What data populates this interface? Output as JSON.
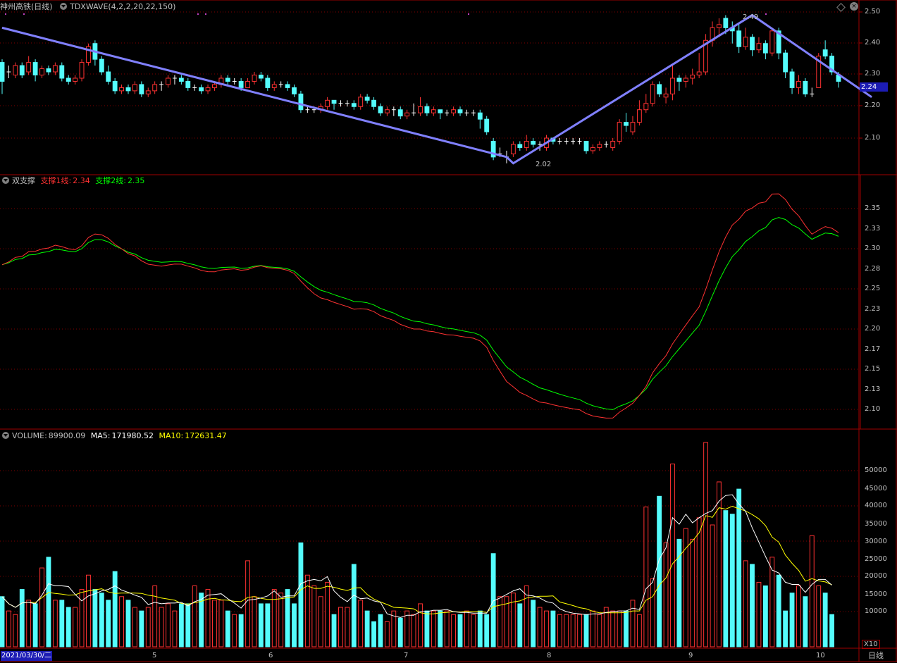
{
  "window": {
    "stock_name": "神州高铁",
    "period": "(日线)",
    "indicator": "TDXWAVE(4,2,2,20,22,150)"
  },
  "price_panel": {
    "current_price": "2.24",
    "high_label": "2.49",
    "low_label": "2.02",
    "y_ticks": [
      "2.50",
      "2.40",
      "2.30",
      "2.20",
      "2.10"
    ],
    "ylim": [
      2.0,
      2.52
    ]
  },
  "support_panel": {
    "title": "双支撑",
    "line1_label": "支撑1线:",
    "line1_value": "2.34",
    "line2_label": "支撑2线:",
    "line2_value": "2.35",
    "y_ticks": [
      "2.35",
      "2.33",
      "2.30",
      "2.28",
      "2.25",
      "2.23",
      "2.20",
      "2.17",
      "2.15",
      "2.13",
      "2.10"
    ]
  },
  "volume_panel": {
    "title": "VOLUME:",
    "volume_value": "89900.09",
    "ma5_label": "MA5:",
    "ma5_value": "171980.52",
    "ma10_label": "MA10:",
    "ma10_value": "172631.47",
    "y_ticks": [
      "50000",
      "45000",
      "40000",
      "35000",
      "30000",
      "25000",
      "20000",
      "15000",
      "10000"
    ],
    "unit": "X10"
  },
  "date_axis": {
    "start_date": "2021/03/30/二",
    "months": [
      "5",
      "6",
      "7",
      "8",
      "9",
      "10"
    ],
    "period_button": "日线"
  },
  "colors": {
    "up": "#ff3232",
    "down": "#54fcfc",
    "wave": "#8080ff",
    "line1": "#ff3232",
    "line2": "#00ff00",
    "ma5": "#ffffff",
    "ma10": "#ffff00"
  },
  "chart_data": {
    "type": "line",
    "candles": [
      {
        "o": 2.34,
        "c": 2.28,
        "h": 2.35,
        "l": 2.24
      },
      {
        "o": 2.31,
        "c": 2.31,
        "h": 2.33,
        "l": 2.29
      },
      {
        "o": 2.3,
        "c": 2.33,
        "h": 2.34,
        "l": 2.29
      },
      {
        "o": 2.33,
        "c": 2.3,
        "h": 2.34,
        "l": 2.29
      },
      {
        "o": 2.31,
        "c": 2.34,
        "h": 2.36,
        "l": 2.3
      },
      {
        "o": 2.34,
        "c": 2.3,
        "h": 2.35,
        "l": 2.28
      },
      {
        "o": 2.3,
        "c": 2.32,
        "h": 2.33,
        "l": 2.29
      },
      {
        "o": 2.32,
        "c": 2.31,
        "h": 2.33,
        "l": 2.3
      },
      {
        "o": 2.31,
        "c": 2.33,
        "h": 2.34,
        "l": 2.3
      },
      {
        "o": 2.33,
        "c": 2.29,
        "h": 2.34,
        "l": 2.28
      },
      {
        "o": 2.29,
        "c": 2.28,
        "h": 2.3,
        "l": 2.27
      },
      {
        "o": 2.28,
        "c": 2.29,
        "h": 2.3,
        "l": 2.27
      },
      {
        "o": 2.29,
        "c": 2.34,
        "h": 2.35,
        "l": 2.28
      },
      {
        "o": 2.34,
        "c": 2.39,
        "h": 2.4,
        "l": 2.33
      },
      {
        "o": 2.4,
        "c": 2.35,
        "h": 2.41,
        "l": 2.33
      },
      {
        "o": 2.35,
        "c": 2.31,
        "h": 2.36,
        "l": 2.3
      },
      {
        "o": 2.31,
        "c": 2.28,
        "h": 2.33,
        "l": 2.27
      },
      {
        "o": 2.28,
        "c": 2.25,
        "h": 2.29,
        "l": 2.24
      },
      {
        "o": 2.25,
        "c": 2.26,
        "h": 2.27,
        "l": 2.24
      },
      {
        "o": 2.26,
        "c": 2.25,
        "h": 2.27,
        "l": 2.24
      },
      {
        "o": 2.25,
        "c": 2.27,
        "h": 2.28,
        "l": 2.24
      },
      {
        "o": 2.27,
        "c": 2.24,
        "h": 2.28,
        "l": 2.23
      },
      {
        "o": 2.24,
        "c": 2.25,
        "h": 2.26,
        "l": 2.23
      },
      {
        "o": 2.25,
        "c": 2.27,
        "h": 2.28,
        "l": 2.24
      },
      {
        "o": 2.27,
        "c": 2.27,
        "h": 2.28,
        "l": 2.25
      },
      {
        "o": 2.27,
        "c": 2.29,
        "h": 2.3,
        "l": 2.26
      },
      {
        "o": 2.29,
        "c": 2.29,
        "h": 2.3,
        "l": 2.27
      },
      {
        "o": 2.29,
        "c": 2.28,
        "h": 2.3,
        "l": 2.27
      },
      {
        "o": 2.28,
        "c": 2.26,
        "h": 2.29,
        "l": 2.25
      },
      {
        "o": 2.26,
        "c": 2.26,
        "h": 2.27,
        "l": 2.25
      },
      {
        "o": 2.26,
        "c": 2.25,
        "h": 2.27,
        "l": 2.24
      },
      {
        "o": 2.25,
        "c": 2.26,
        "h": 2.27,
        "l": 2.24
      },
      {
        "o": 2.26,
        "c": 2.27,
        "h": 2.28,
        "l": 2.25
      },
      {
        "o": 2.27,
        "c": 2.29,
        "h": 2.3,
        "l": 2.26
      },
      {
        "o": 2.29,
        "c": 2.28,
        "h": 2.3,
        "l": 2.27
      },
      {
        "o": 2.28,
        "c": 2.28,
        "h": 2.29,
        "l": 2.27
      },
      {
        "o": 2.28,
        "c": 2.26,
        "h": 2.29,
        "l": 2.25
      },
      {
        "o": 2.26,
        "c": 2.28,
        "h": 2.29,
        "l": 2.26
      },
      {
        "o": 2.28,
        "c": 2.3,
        "h": 2.31,
        "l": 2.27
      },
      {
        "o": 2.3,
        "c": 2.29,
        "h": 2.31,
        "l": 2.28
      },
      {
        "o": 2.29,
        "c": 2.26,
        "h": 2.3,
        "l": 2.25
      },
      {
        "o": 2.26,
        "c": 2.27,
        "h": 2.28,
        "l": 2.25
      },
      {
        "o": 2.27,
        "c": 2.27,
        "h": 2.28,
        "l": 2.26
      },
      {
        "o": 2.27,
        "c": 2.26,
        "h": 2.28,
        "l": 2.25
      },
      {
        "o": 2.26,
        "c": 2.24,
        "h": 2.27,
        "l": 2.23
      },
      {
        "o": 2.24,
        "c": 2.19,
        "h": 2.25,
        "l": 2.18
      },
      {
        "o": 2.19,
        "c": 2.19,
        "h": 2.2,
        "l": 2.18
      },
      {
        "o": 2.19,
        "c": 2.19,
        "h": 2.2,
        "l": 2.18
      },
      {
        "o": 2.19,
        "c": 2.2,
        "h": 2.21,
        "l": 2.18
      },
      {
        "o": 2.2,
        "c": 2.22,
        "h": 2.23,
        "l": 2.19
      },
      {
        "o": 2.22,
        "c": 2.21,
        "h": 2.22,
        "l": 2.19
      },
      {
        "o": 2.21,
        "c": 2.21,
        "h": 2.22,
        "l": 2.2
      },
      {
        "o": 2.21,
        "c": 2.21,
        "h": 2.22,
        "l": 2.2
      },
      {
        "o": 2.21,
        "c": 2.2,
        "h": 2.22,
        "l": 2.19
      },
      {
        "o": 2.2,
        "c": 2.23,
        "h": 2.24,
        "l": 2.19
      },
      {
        "o": 2.23,
        "c": 2.22,
        "h": 2.24,
        "l": 2.21
      },
      {
        "o": 2.22,
        "c": 2.2,
        "h": 2.23,
        "l": 2.19
      },
      {
        "o": 2.2,
        "c": 2.18,
        "h": 2.21,
        "l": 2.17
      },
      {
        "o": 2.18,
        "c": 2.19,
        "h": 2.2,
        "l": 2.17
      },
      {
        "o": 2.19,
        "c": 2.19,
        "h": 2.2,
        "l": 2.17
      },
      {
        "o": 2.19,
        "c": 2.17,
        "h": 2.2,
        "l": 2.16
      },
      {
        "o": 2.17,
        "c": 2.18,
        "h": 2.19,
        "l": 2.16
      },
      {
        "o": 2.18,
        "c": 2.18,
        "h": 2.21,
        "l": 2.17
      },
      {
        "o": 2.18,
        "c": 2.2,
        "h": 2.23,
        "l": 2.17
      },
      {
        "o": 2.2,
        "c": 2.18,
        "h": 2.21,
        "l": 2.17
      },
      {
        "o": 2.18,
        "c": 2.19,
        "h": 2.2,
        "l": 2.17
      },
      {
        "o": 2.19,
        "c": 2.18,
        "h": 2.19,
        "l": 2.16
      },
      {
        "o": 2.18,
        "c": 2.18,
        "h": 2.19,
        "l": 2.17
      },
      {
        "o": 2.18,
        "c": 2.19,
        "h": 2.2,
        "l": 2.17
      },
      {
        "o": 2.19,
        "c": 2.18,
        "h": 2.2,
        "l": 2.17
      },
      {
        "o": 2.18,
        "c": 2.18,
        "h": 2.19,
        "l": 2.17
      },
      {
        "o": 2.18,
        "c": 2.18,
        "h": 2.19,
        "l": 2.17
      },
      {
        "o": 2.18,
        "c": 2.16,
        "h": 2.19,
        "l": 2.13
      },
      {
        "o": 2.16,
        "c": 2.12,
        "h": 2.17,
        "l": 2.11
      },
      {
        "o": 2.09,
        "c": 2.04,
        "h": 2.1,
        "l": 2.03
      },
      {
        "o": 2.05,
        "c": 2.05,
        "h": 2.07,
        "l": 2.04
      },
      {
        "o": 2.04,
        "c": 2.04,
        "h": 2.06,
        "l": 2.02
      },
      {
        "o": 2.05,
        "c": 2.08,
        "h": 2.09,
        "l": 2.04
      },
      {
        "o": 2.08,
        "c": 2.07,
        "h": 2.09,
        "l": 2.06
      },
      {
        "o": 2.07,
        "c": 2.09,
        "h": 2.11,
        "l": 2.06
      },
      {
        "o": 2.09,
        "c": 2.08,
        "h": 2.1,
        "l": 2.07
      },
      {
        "o": 2.08,
        "c": 2.08,
        "h": 2.09,
        "l": 2.06
      },
      {
        "o": 2.07,
        "c": 2.1,
        "h": 2.11,
        "l": 2.06
      },
      {
        "o": 2.1,
        "c": 2.09,
        "h": 2.1,
        "l": 2.08
      },
      {
        "o": 2.09,
        "c": 2.09,
        "h": 2.1,
        "l": 2.08
      },
      {
        "o": 2.09,
        "c": 2.09,
        "h": 2.1,
        "l": 2.08
      },
      {
        "o": 2.09,
        "c": 2.09,
        "h": 2.1,
        "l": 2.08
      },
      {
        "o": 2.09,
        "c": 2.09,
        "h": 2.1,
        "l": 2.08
      },
      {
        "o": 2.09,
        "c": 2.06,
        "h": 2.09,
        "l": 2.05
      },
      {
        "o": 2.06,
        "c": 2.07,
        "h": 2.08,
        "l": 2.05
      },
      {
        "o": 2.07,
        "c": 2.08,
        "h": 2.09,
        "l": 2.06
      },
      {
        "o": 2.08,
        "c": 2.08,
        "h": 2.09,
        "l": 2.07
      },
      {
        "o": 2.07,
        "c": 2.09,
        "h": 2.1,
        "l": 2.06
      },
      {
        "o": 2.09,
        "c": 2.15,
        "h": 2.16,
        "l": 2.08
      },
      {
        "o": 2.15,
        "c": 2.14,
        "h": 2.18,
        "l": 2.12
      },
      {
        "o": 2.12,
        "c": 2.15,
        "h": 2.17,
        "l": 2.11
      },
      {
        "o": 2.15,
        "c": 2.19,
        "h": 2.22,
        "l": 2.14
      },
      {
        "o": 2.19,
        "c": 2.21,
        "h": 2.24,
        "l": 2.18
      },
      {
        "o": 2.21,
        "c": 2.27,
        "h": 2.28,
        "l": 2.2
      },
      {
        "o": 2.27,
        "c": 2.24,
        "h": 2.28,
        "l": 2.23
      },
      {
        "o": 2.23,
        "c": 2.24,
        "h": 2.26,
        "l": 2.21
      },
      {
        "o": 2.24,
        "c": 2.29,
        "h": 2.33,
        "l": 2.22
      },
      {
        "o": 2.29,
        "c": 2.28,
        "h": 2.3,
        "l": 2.25
      },
      {
        "o": 2.28,
        "c": 2.29,
        "h": 2.3,
        "l": 2.26
      },
      {
        "o": 2.29,
        "c": 2.3,
        "h": 2.32,
        "l": 2.27
      },
      {
        "o": 2.3,
        "c": 2.31,
        "h": 2.37,
        "l": 2.29
      },
      {
        "o": 2.31,
        "c": 2.41,
        "h": 2.43,
        "l": 2.3
      },
      {
        "o": 2.41,
        "c": 2.45,
        "h": 2.47,
        "l": 2.39
      },
      {
        "o": 2.45,
        "c": 2.46,
        "h": 2.48,
        "l": 2.42
      },
      {
        "o": 2.48,
        "c": 2.45,
        "h": 2.49,
        "l": 2.43
      },
      {
        "o": 2.45,
        "c": 2.44,
        "h": 2.47,
        "l": 2.4
      },
      {
        "o": 2.44,
        "c": 2.39,
        "h": 2.46,
        "l": 2.37
      },
      {
        "o": 2.39,
        "c": 2.42,
        "h": 2.45,
        "l": 2.38
      },
      {
        "o": 2.42,
        "c": 2.38,
        "h": 2.43,
        "l": 2.36
      },
      {
        "o": 2.38,
        "c": 2.4,
        "h": 2.42,
        "l": 2.37
      },
      {
        "o": 2.4,
        "c": 2.37,
        "h": 2.41,
        "l": 2.35
      },
      {
        "o": 2.37,
        "c": 2.44,
        "h": 2.45,
        "l": 2.36
      },
      {
        "o": 2.44,
        "c": 2.37,
        "h": 2.45,
        "l": 2.35
      },
      {
        "o": 2.37,
        "c": 2.31,
        "h": 2.38,
        "l": 2.29
      },
      {
        "o": 2.31,
        "c": 2.26,
        "h": 2.32,
        "l": 2.24
      },
      {
        "o": 2.26,
        "c": 2.28,
        "h": 2.3,
        "l": 2.24
      },
      {
        "o": 2.28,
        "c": 2.24,
        "h": 2.29,
        "l": 2.23
      },
      {
        "o": 2.24,
        "c": 2.24,
        "h": 2.26,
        "l": 2.23
      },
      {
        "o": 2.26,
        "c": 2.36,
        "h": 2.37,
        "l": 2.26
      },
      {
        "o": 2.38,
        "c": 2.36,
        "h": 2.41,
        "l": 2.35
      },
      {
        "o": 2.36,
        "c": 2.31,
        "h": 2.37,
        "l": 2.3
      },
      {
        "o": 2.3,
        "c": 2.28,
        "h": 2.31,
        "l": 2.26
      }
    ],
    "volumes": [
      14,
      10,
      9,
      16,
      13,
      12,
      22,
      25,
      13,
      13,
      11,
      11,
      16,
      20,
      16,
      15,
      13,
      21,
      14,
      13,
      11,
      10,
      11,
      17,
      11,
      12,
      10,
      12,
      12,
      17,
      15,
      16,
      13,
      13,
      10,
      9,
      9,
      24,
      14,
      12,
      12,
      16,
      15,
      16,
      12,
      29,
      20,
      17,
      14,
      18,
      9,
      11,
      11,
      23,
      13,
      10,
      7,
      9,
      7,
      10,
      8,
      10,
      9,
      12,
      10,
      10,
      10,
      10,
      9,
      9,
      10,
      9,
      10,
      9,
      26,
      14,
      14,
      15,
      12,
      17,
      13,
      11,
      10,
      10,
      9,
      9,
      9,
      9,
      9,
      10,
      9,
      11,
      10,
      10,
      10,
      13,
      9,
      39,
      19,
      42,
      29,
      51,
      30,
      33,
      30,
      36,
      57,
      34,
      46,
      38,
      37,
      44,
      24,
      23,
      18,
      17,
      25,
      20,
      10,
      15,
      17,
      14,
      31,
      17,
      15,
      9
    ],
    "volume_ylim": [
      0,
      57000
    ],
    "wave_points": [
      {
        "i": 0,
        "v": 2.45
      },
      {
        "i": 76,
        "v": 2.04
      },
      {
        "i": 77,
        "v": 2.02
      },
      {
        "i": 113,
        "v": 2.49
      },
      {
        "i": 131,
        "v": 2.23
      }
    ]
  }
}
